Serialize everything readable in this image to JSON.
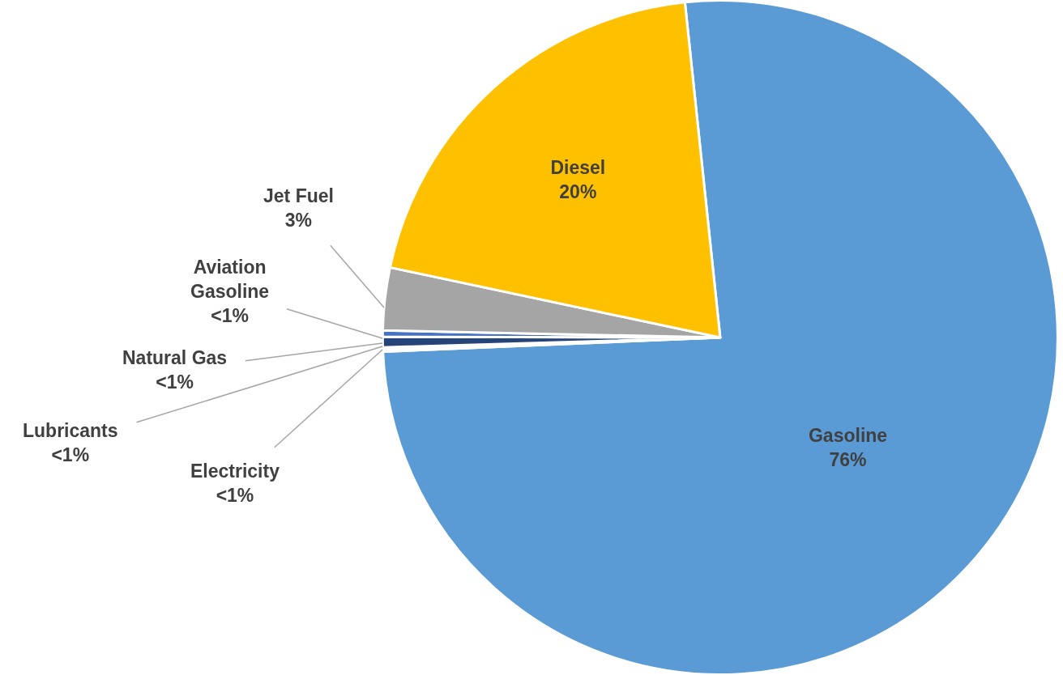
{
  "chart_data": {
    "type": "pie",
    "categories": [
      "Gasoline",
      "Electricity",
      "Lubricants",
      "Natural Gas",
      "Aviation Gasoline",
      "Jet Fuel",
      "Diesel"
    ],
    "values": [
      76,
      0.1,
      0.1,
      0.5,
      0.3,
      3,
      20
    ],
    "value_labels": [
      "76%",
      "<1%",
      "<1%",
      "<1%",
      "<1%",
      "3%",
      "20%"
    ],
    "colors": [
      "#5b9bd5",
      "#70ad47",
      "#9e480e",
      "#264478",
      "#4472c4",
      "#a5a5a5",
      "#ffc000"
    ]
  }
}
